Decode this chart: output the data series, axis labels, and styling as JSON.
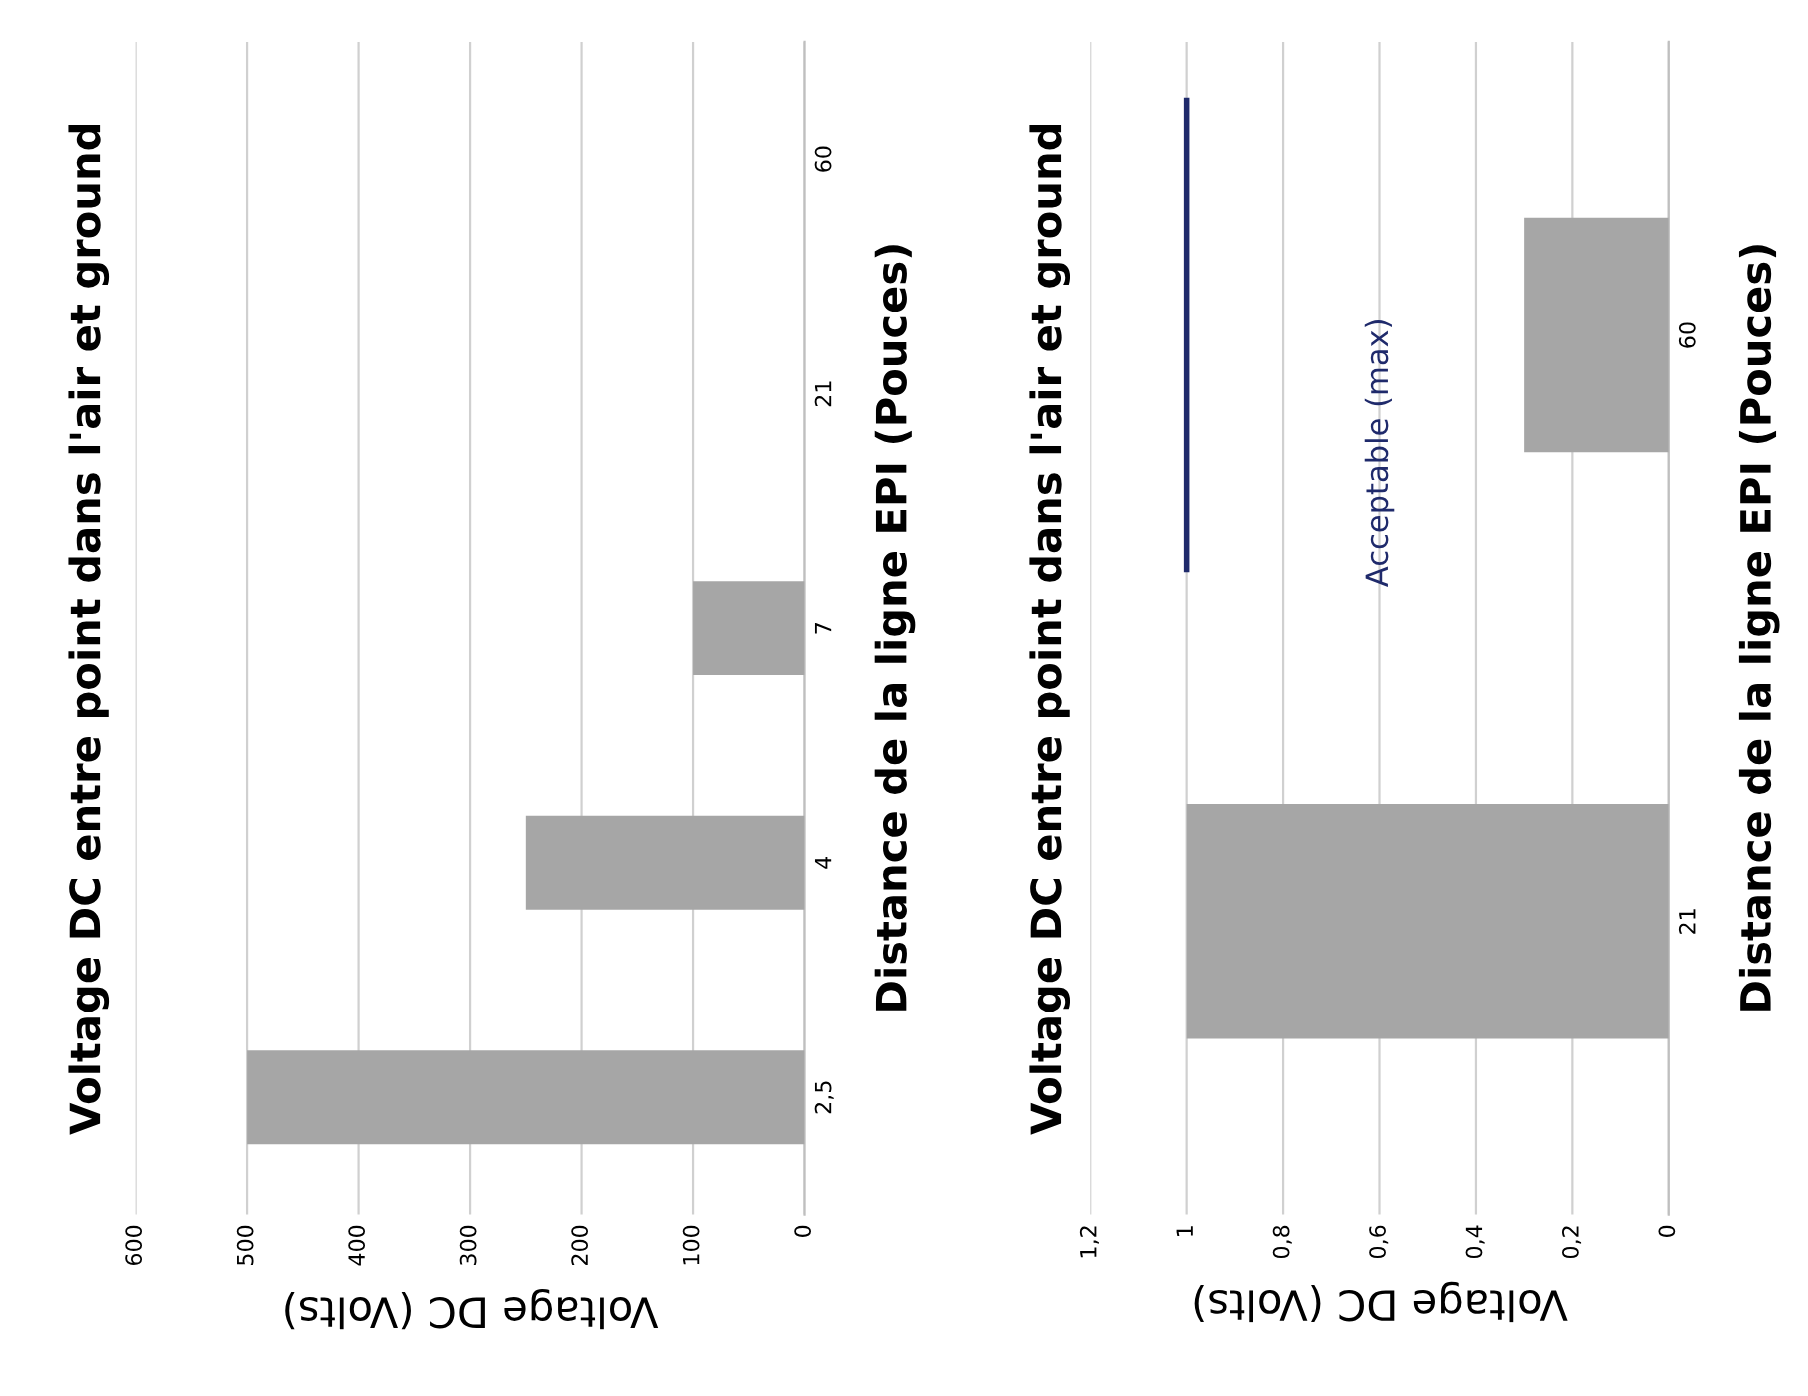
{
  "chart_data": [
    {
      "type": "bar",
      "orientation": "horizontal",
      "title": "Voltage DC entre point dans l'air et ground",
      "xlabel": "Voltage DC (Volts)",
      "ylabel": "Distance de la ligne EPI (Pouces)",
      "categories": [
        "60",
        "21",
        "7",
        "4",
        "2,5"
      ],
      "values": [
        0,
        0,
        100,
        250,
        500
      ],
      "color": "#a6a6a6",
      "xlim": [
        600,
        0
      ],
      "xticks": [
        0,
        100,
        200,
        300,
        400,
        500,
        600
      ],
      "grid": "x"
    },
    {
      "type": "bar",
      "orientation": "horizontal",
      "title": "Voltage DC entre point dans l'air et ground",
      "xlabel": "Voltage DC (Volts)",
      "ylabel": "Distance de la ligne EPI (Pouces)",
      "categories": [
        "60",
        "21"
      ],
      "values": [
        0.3,
        1
      ],
      "color": "#a6a6a6",
      "xlim": [
        1.2,
        0
      ],
      "xticks": [
        {
          "value": 0,
          "label": "0"
        },
        {
          "value": 0.2,
          "label": "0,2"
        },
        {
          "value": 0.4,
          "label": "0,4"
        },
        {
          "value": 0.6,
          "label": "0,6"
        },
        {
          "value": 0.8,
          "label": "0,8"
        },
        {
          "value": 1,
          "label": "1"
        },
        {
          "value": 1.2,
          "label": "1,2"
        }
      ],
      "grid": "x",
      "ref_lines": [
        {
          "axis": "x",
          "value": 1,
          "label": "Acceptable (max)",
          "color": "#1f2a6b"
        }
      ]
    }
  ]
}
